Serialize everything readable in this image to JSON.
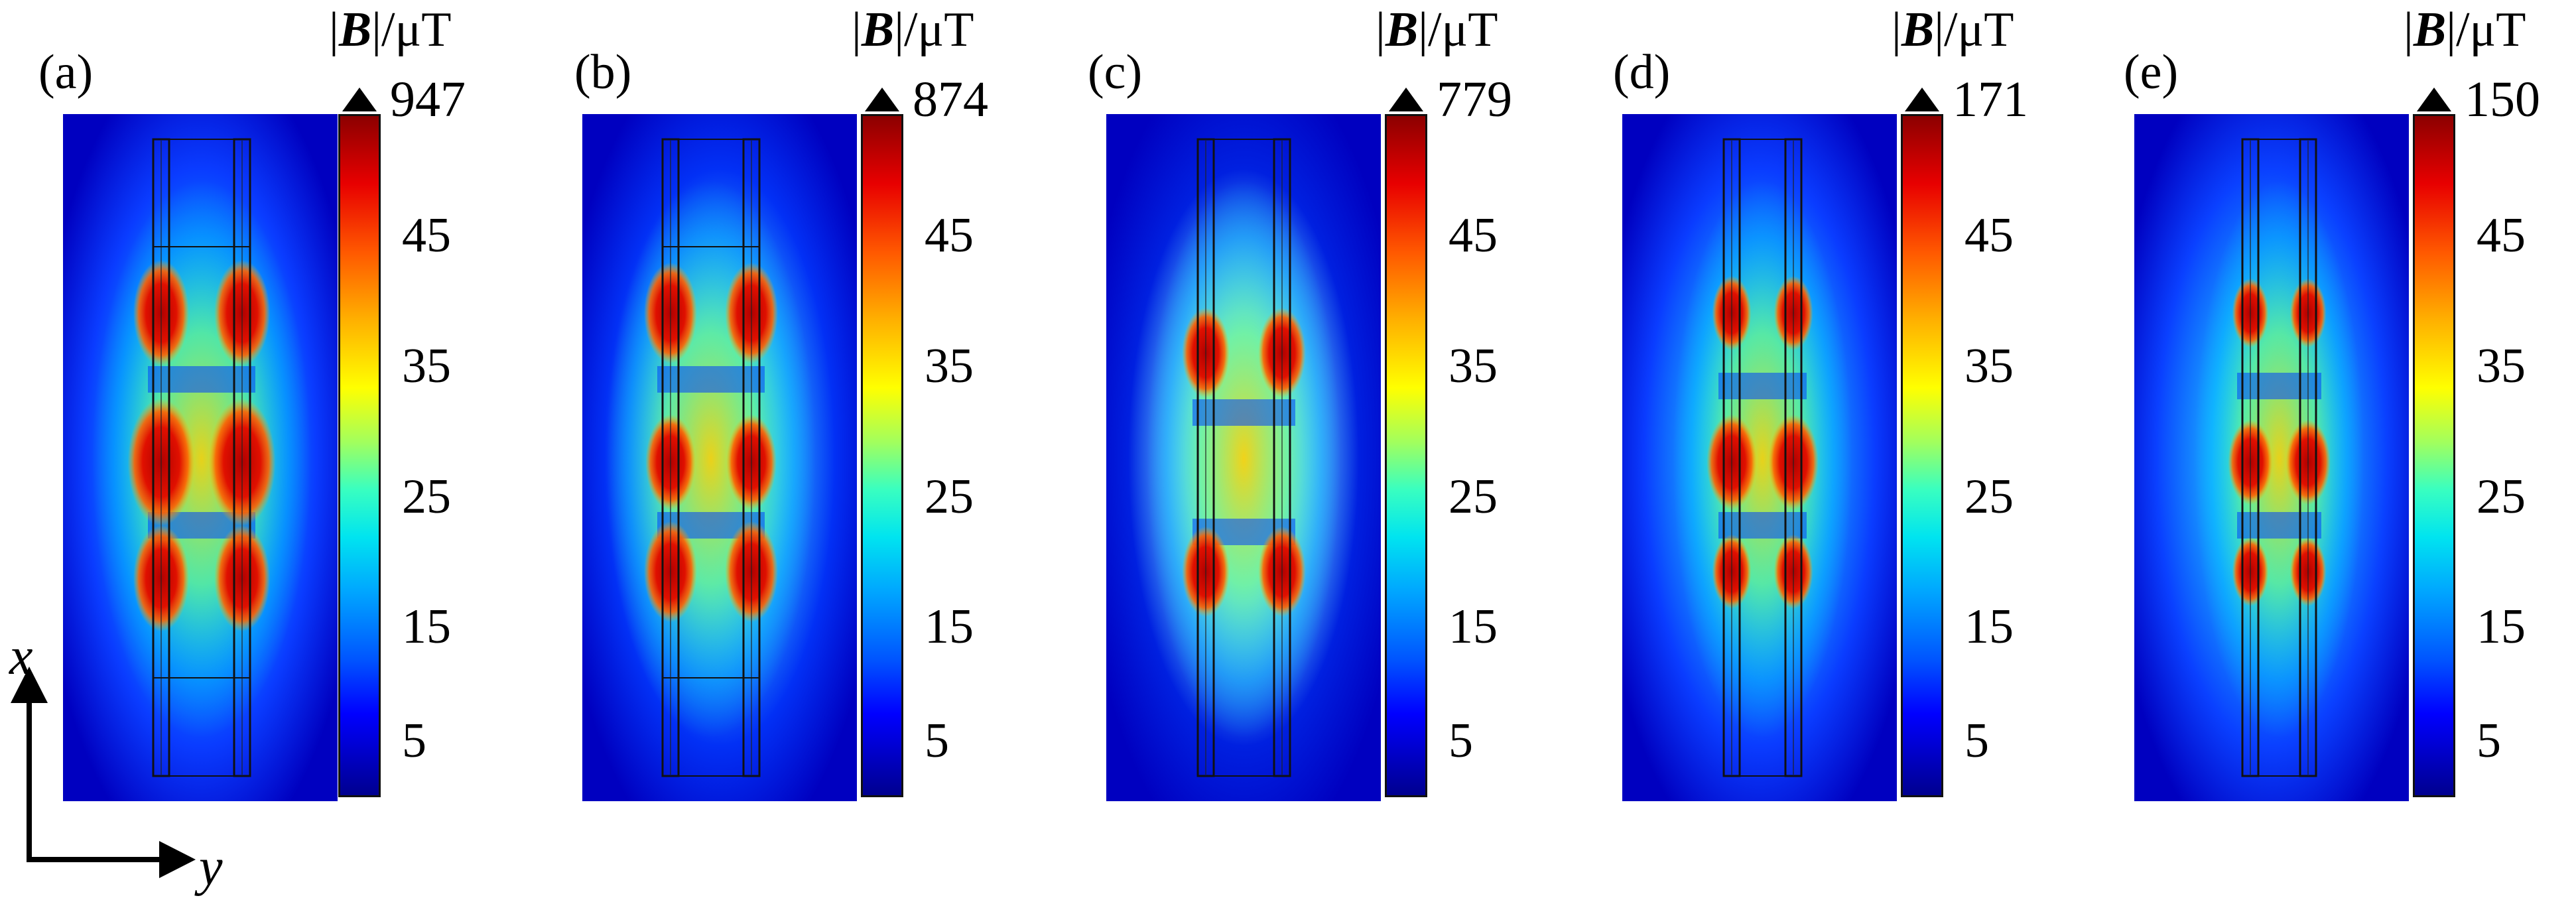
{
  "figure": {
    "colorbar_title_prefix": "|",
    "colorbar_title_symbol": "B",
    "colorbar_title_suffix": "|/μT",
    "colorbar_ticks": [
      "45",
      "35",
      "25",
      "15",
      "5"
    ],
    "panels": [
      {
        "label": "(a)",
        "max": "947",
        "variant": "a"
      },
      {
        "label": "(b)",
        "max": "874",
        "variant": "b"
      },
      {
        "label": "(c)",
        "max": "779",
        "variant": "c"
      },
      {
        "label": "(d)",
        "max": "171",
        "variant": "d"
      },
      {
        "label": "(e)",
        "max": "150",
        "variant": "e"
      }
    ],
    "axes": {
      "x": "x",
      "y": "y"
    }
  },
  "colors": {
    "field_low": "#0000c8",
    "field_mid": "#00c8ff",
    "field_high": "#d00000",
    "conductor": "#111111"
  }
}
